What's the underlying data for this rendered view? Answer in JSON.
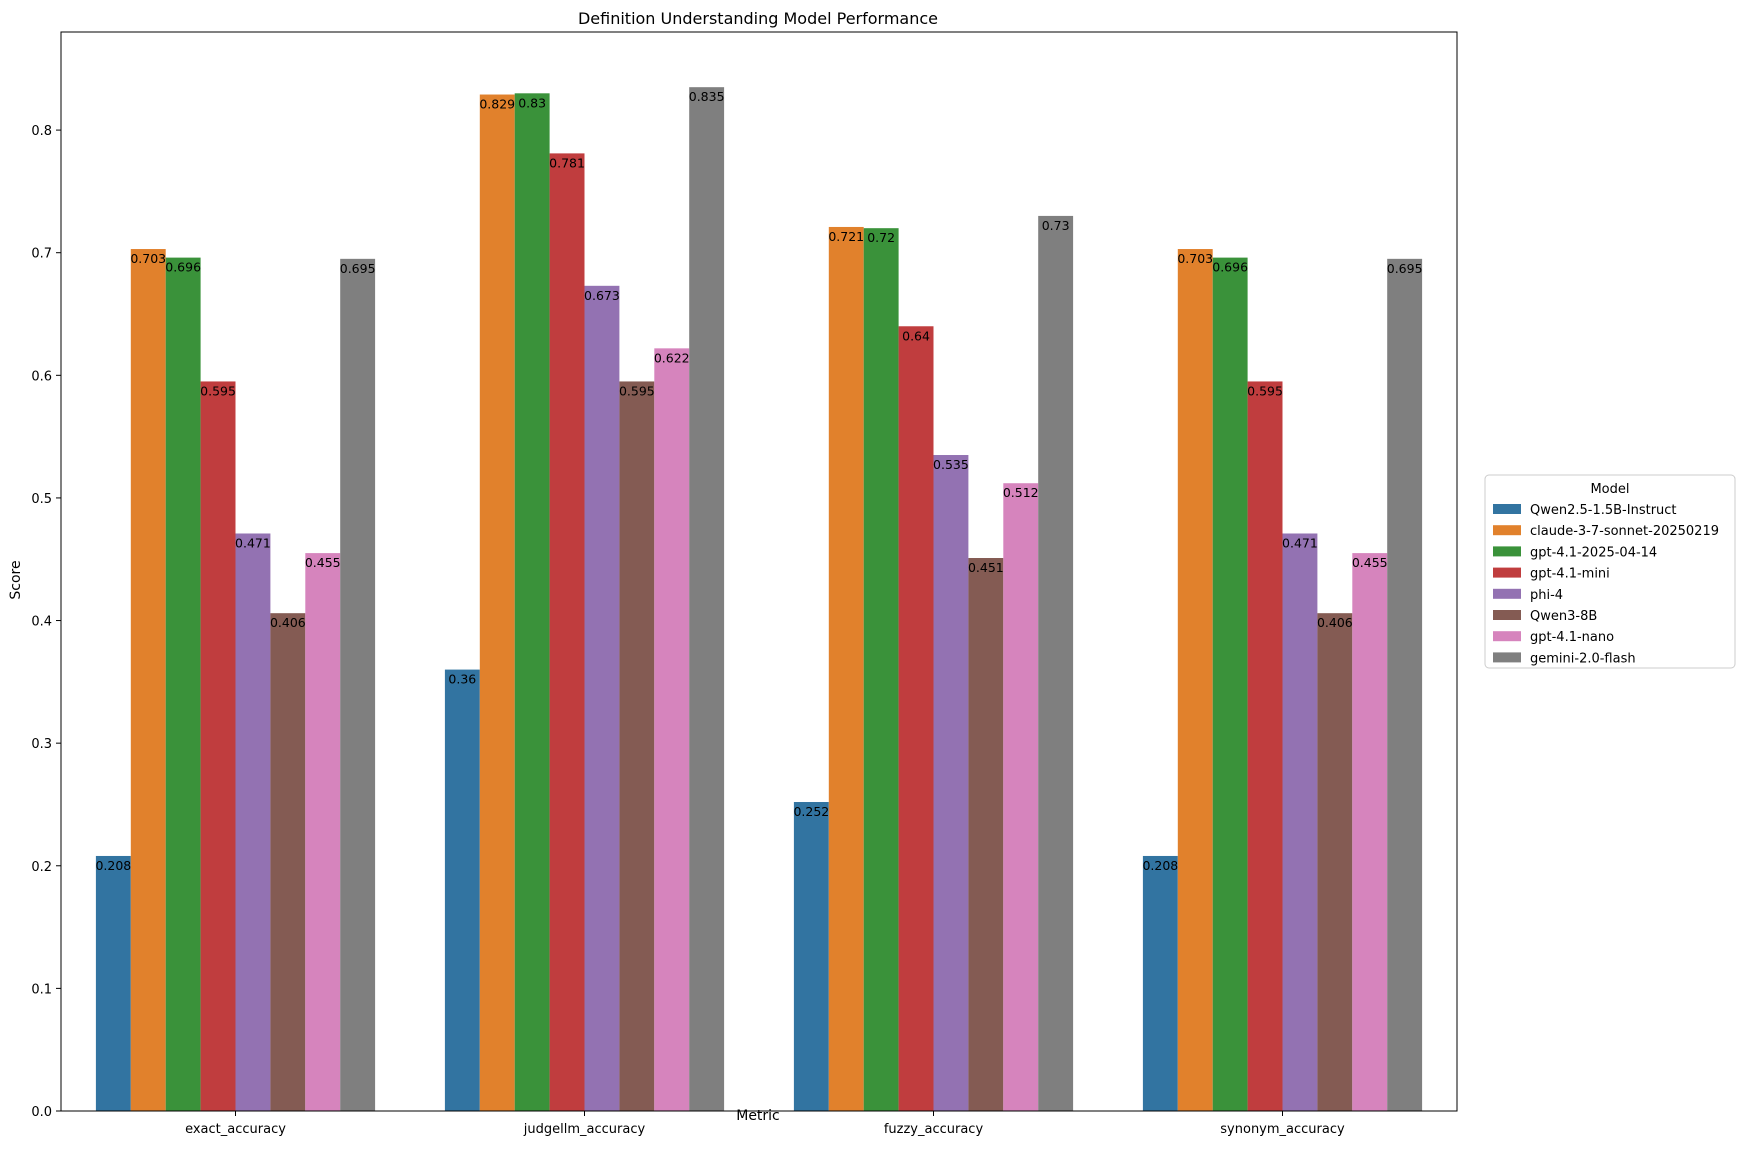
{
  "chart_data": {
    "type": "bar",
    "title": "Definition Understanding Model Performance",
    "xlabel": "Metric",
    "ylabel": "Score",
    "ylim": [
      0,
      0.88
    ],
    "yticks": [
      "0.0",
      "0.1",
      "0.2",
      "0.3",
      "0.4",
      "0.5",
      "0.6",
      "0.7",
      "0.8"
    ],
    "grid": false,
    "categories": [
      "exact_accuracy",
      "judgellm_accuracy",
      "fuzzy_accuracy",
      "synonym_accuracy"
    ],
    "legend": {
      "title": "Model",
      "placement": "right"
    },
    "series": [
      {
        "name": "Qwen2.5-1.5B-Instruct",
        "color": "#3274a1",
        "values": [
          0.208,
          0.36,
          0.252,
          0.208
        ],
        "labels": [
          "0.208",
          "0.36",
          "0.252",
          "0.208"
        ]
      },
      {
        "name": "claude-3-7-sonnet-20250219",
        "color": "#e1812c",
        "values": [
          0.703,
          0.829,
          0.721,
          0.703
        ],
        "labels": [
          "0.703",
          "0.829",
          "0.721",
          "0.703"
        ]
      },
      {
        "name": "gpt-4.1-2025-04-14",
        "color": "#3a923a",
        "values": [
          0.696,
          0.83,
          0.72,
          0.696
        ],
        "labels": [
          "0.696",
          "0.83",
          "0.72",
          "0.696"
        ]
      },
      {
        "name": "gpt-4.1-mini",
        "color": "#c03d3e",
        "values": [
          0.595,
          0.781,
          0.64,
          0.595
        ],
        "labels": [
          "0.595",
          "0.781",
          "0.64",
          "0.595"
        ]
      },
      {
        "name": "phi-4",
        "color": "#9372b2",
        "values": [
          0.471,
          0.673,
          0.535,
          0.471
        ],
        "labels": [
          "0.471",
          "0.673",
          "0.535",
          "0.471"
        ]
      },
      {
        "name": "Qwen3-8B",
        "color": "#845b53",
        "values": [
          0.406,
          0.595,
          0.451,
          0.406
        ],
        "labels": [
          "0.406",
          "0.595",
          "0.451",
          "0.406"
        ]
      },
      {
        "name": "gpt-4.1-nano",
        "color": "#d684bd",
        "values": [
          0.455,
          0.622,
          0.512,
          0.455
        ],
        "labels": [
          "0.455",
          "0.622",
          "0.512",
          "0.455"
        ]
      },
      {
        "name": "gemini-2.0-flash",
        "color": "#7f7f7f",
        "values": [
          0.695,
          0.835,
          0.73,
          0.695
        ],
        "labels": [
          "0.695",
          "0.835",
          "0.73",
          "0.695"
        ]
      }
    ]
  }
}
